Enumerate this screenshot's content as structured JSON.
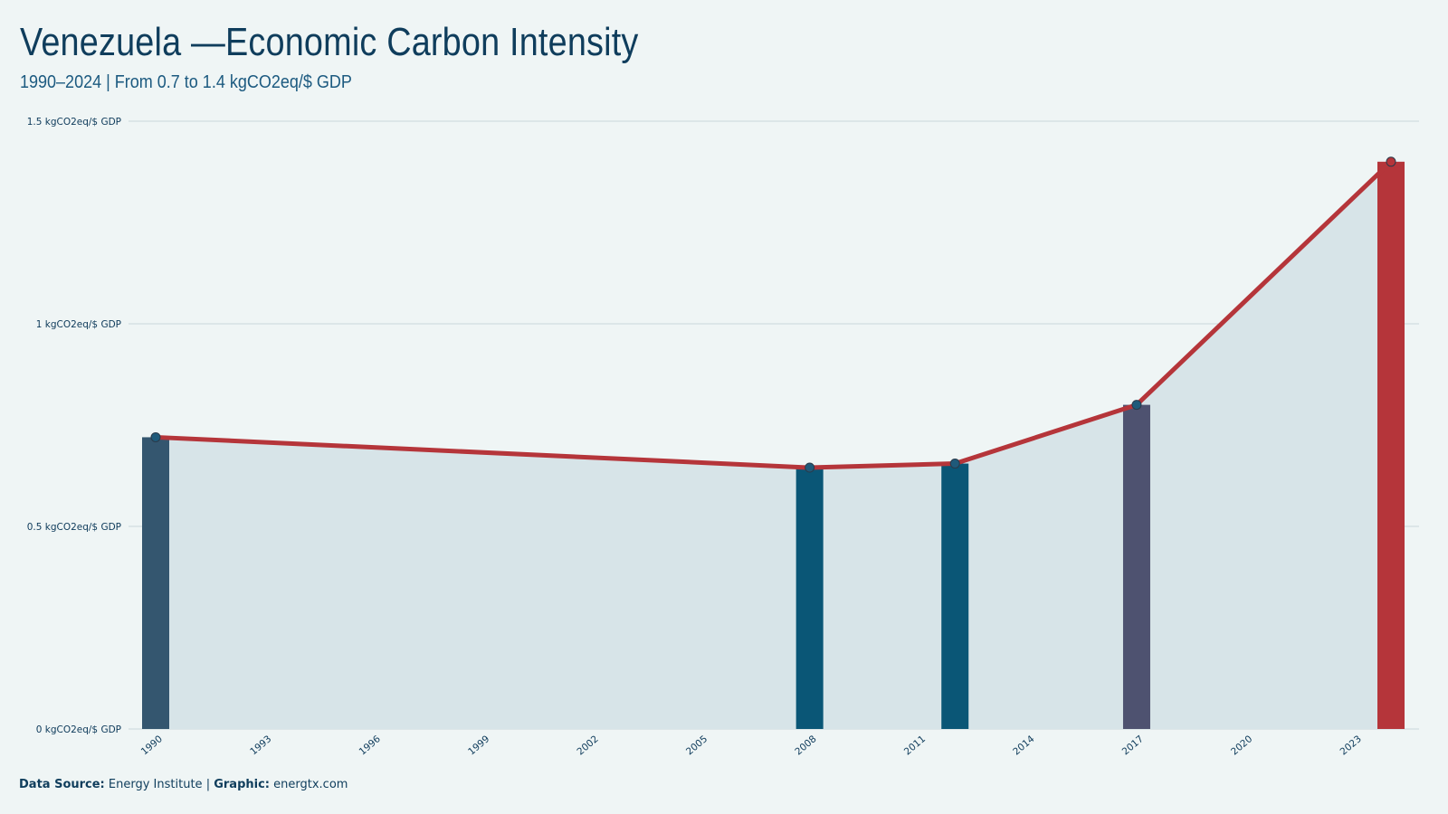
{
  "header": {
    "title": "Venezuela —Economic Carbon Intensity",
    "subtitle": "1990–2024 | From 0.7 to 1.4 kgCO2eq/$ GDP"
  },
  "footer": {
    "source_label": "Data Source:",
    "source_value": "Energy Institute",
    "separator": "|",
    "graphic_label": "Graphic:",
    "graphic_value": "energtx.com"
  },
  "colors": {
    "background": "#eff5f5",
    "area_fill": "#d7e4e8",
    "line": "#b5353a",
    "grid": "#c9d6dc",
    "text": "#0d3a5a"
  },
  "chart_data": {
    "type": "bar",
    "overlay": "line-with-area",
    "x_axis": {
      "type": "year",
      "range": [
        1990,
        2024
      ],
      "tick_labels": [
        "1990",
        "1993",
        "1996",
        "1999",
        "2002",
        "2005",
        "2008",
        "2011",
        "2014",
        "2017",
        "2020",
        "2023"
      ]
    },
    "y_axis": {
      "range": [
        0,
        1.5
      ],
      "tick_labels": [
        "0 kgCO2eq/$ GDP",
        "0.5 kgCO2eq/$ GDP",
        "1 kgCO2eq/$ GDP",
        "1.5 kgCO2eq/$ GDP"
      ],
      "tick_values": [
        0,
        0.5,
        1,
        1.5
      ],
      "grid": true
    },
    "points": [
      {
        "x": 1990,
        "y": 0.72,
        "bar_color": "#34566f"
      },
      {
        "x": 2008,
        "y": 0.645,
        "bar_color": "#0a5676"
      },
      {
        "x": 2012,
        "y": 0.655,
        "bar_color": "#0a5676"
      },
      {
        "x": 2017,
        "y": 0.8,
        "bar_color": "#4e5270"
      },
      {
        "x": 2024,
        "y": 1.4,
        "bar_color": "#b5353a"
      }
    ]
  }
}
